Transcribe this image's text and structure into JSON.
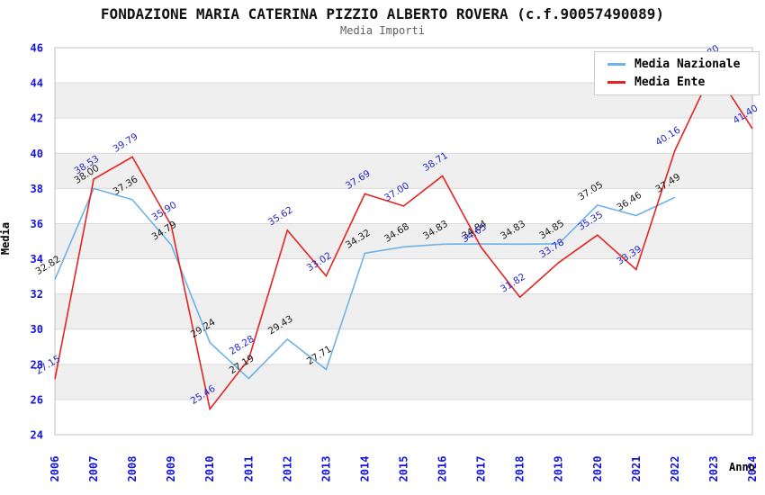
{
  "page": {
    "title": "FONDAZIONE MARIA CATERINA PIZZIO ALBERTO ROVERA (c.f.90057490089)",
    "subtitle": "Media Importi"
  },
  "chart_data": {
    "type": "line",
    "title": "FONDAZIONE MARIA CATERINA PIZZIO ALBERTO ROVERA (c.f.90057490089)",
    "subtitle": "Media Importi",
    "xlabel": "Anno",
    "ylabel": "Media",
    "ylim": [
      24,
      46
    ],
    "ytick_step": 2,
    "grid": "horizontal-bands",
    "legend_position": "top-right",
    "x": [
      2006,
      2007,
      2008,
      2009,
      2010,
      2011,
      2012,
      2013,
      2014,
      2015,
      2016,
      2017,
      2018,
      2019,
      2020,
      2021,
      2022,
      2023,
      2024
    ],
    "series": [
      {
        "name": "Media Nazionale",
        "color": "#6db2e8",
        "label_color": "#1a1a1a",
        "values": [
          32.82,
          38.0,
          37.36,
          34.79,
          29.24,
          27.19,
          29.43,
          27.71,
          34.32,
          34.68,
          34.83,
          34.84,
          34.83,
          34.85,
          37.05,
          36.46,
          37.49,
          null,
          null
        ]
      },
      {
        "name": "Media Ente",
        "color": "#e62323",
        "label_color": "#2626c4",
        "values": [
          27.15,
          38.53,
          39.79,
          35.9,
          25.46,
          28.28,
          35.62,
          33.02,
          37.69,
          37.0,
          38.71,
          34.65,
          31.82,
          33.78,
          35.35,
          33.39,
          40.16,
          44.8,
          41.4
        ]
      }
    ]
  },
  "colors": {
    "tick_labels": "#1414e0",
    "band_fill": "#efefef",
    "gridline": "#d9d9d9",
    "plot_border": "#c0c0c0",
    "title": "#111111",
    "subtitle": "#5f5f5f"
  }
}
